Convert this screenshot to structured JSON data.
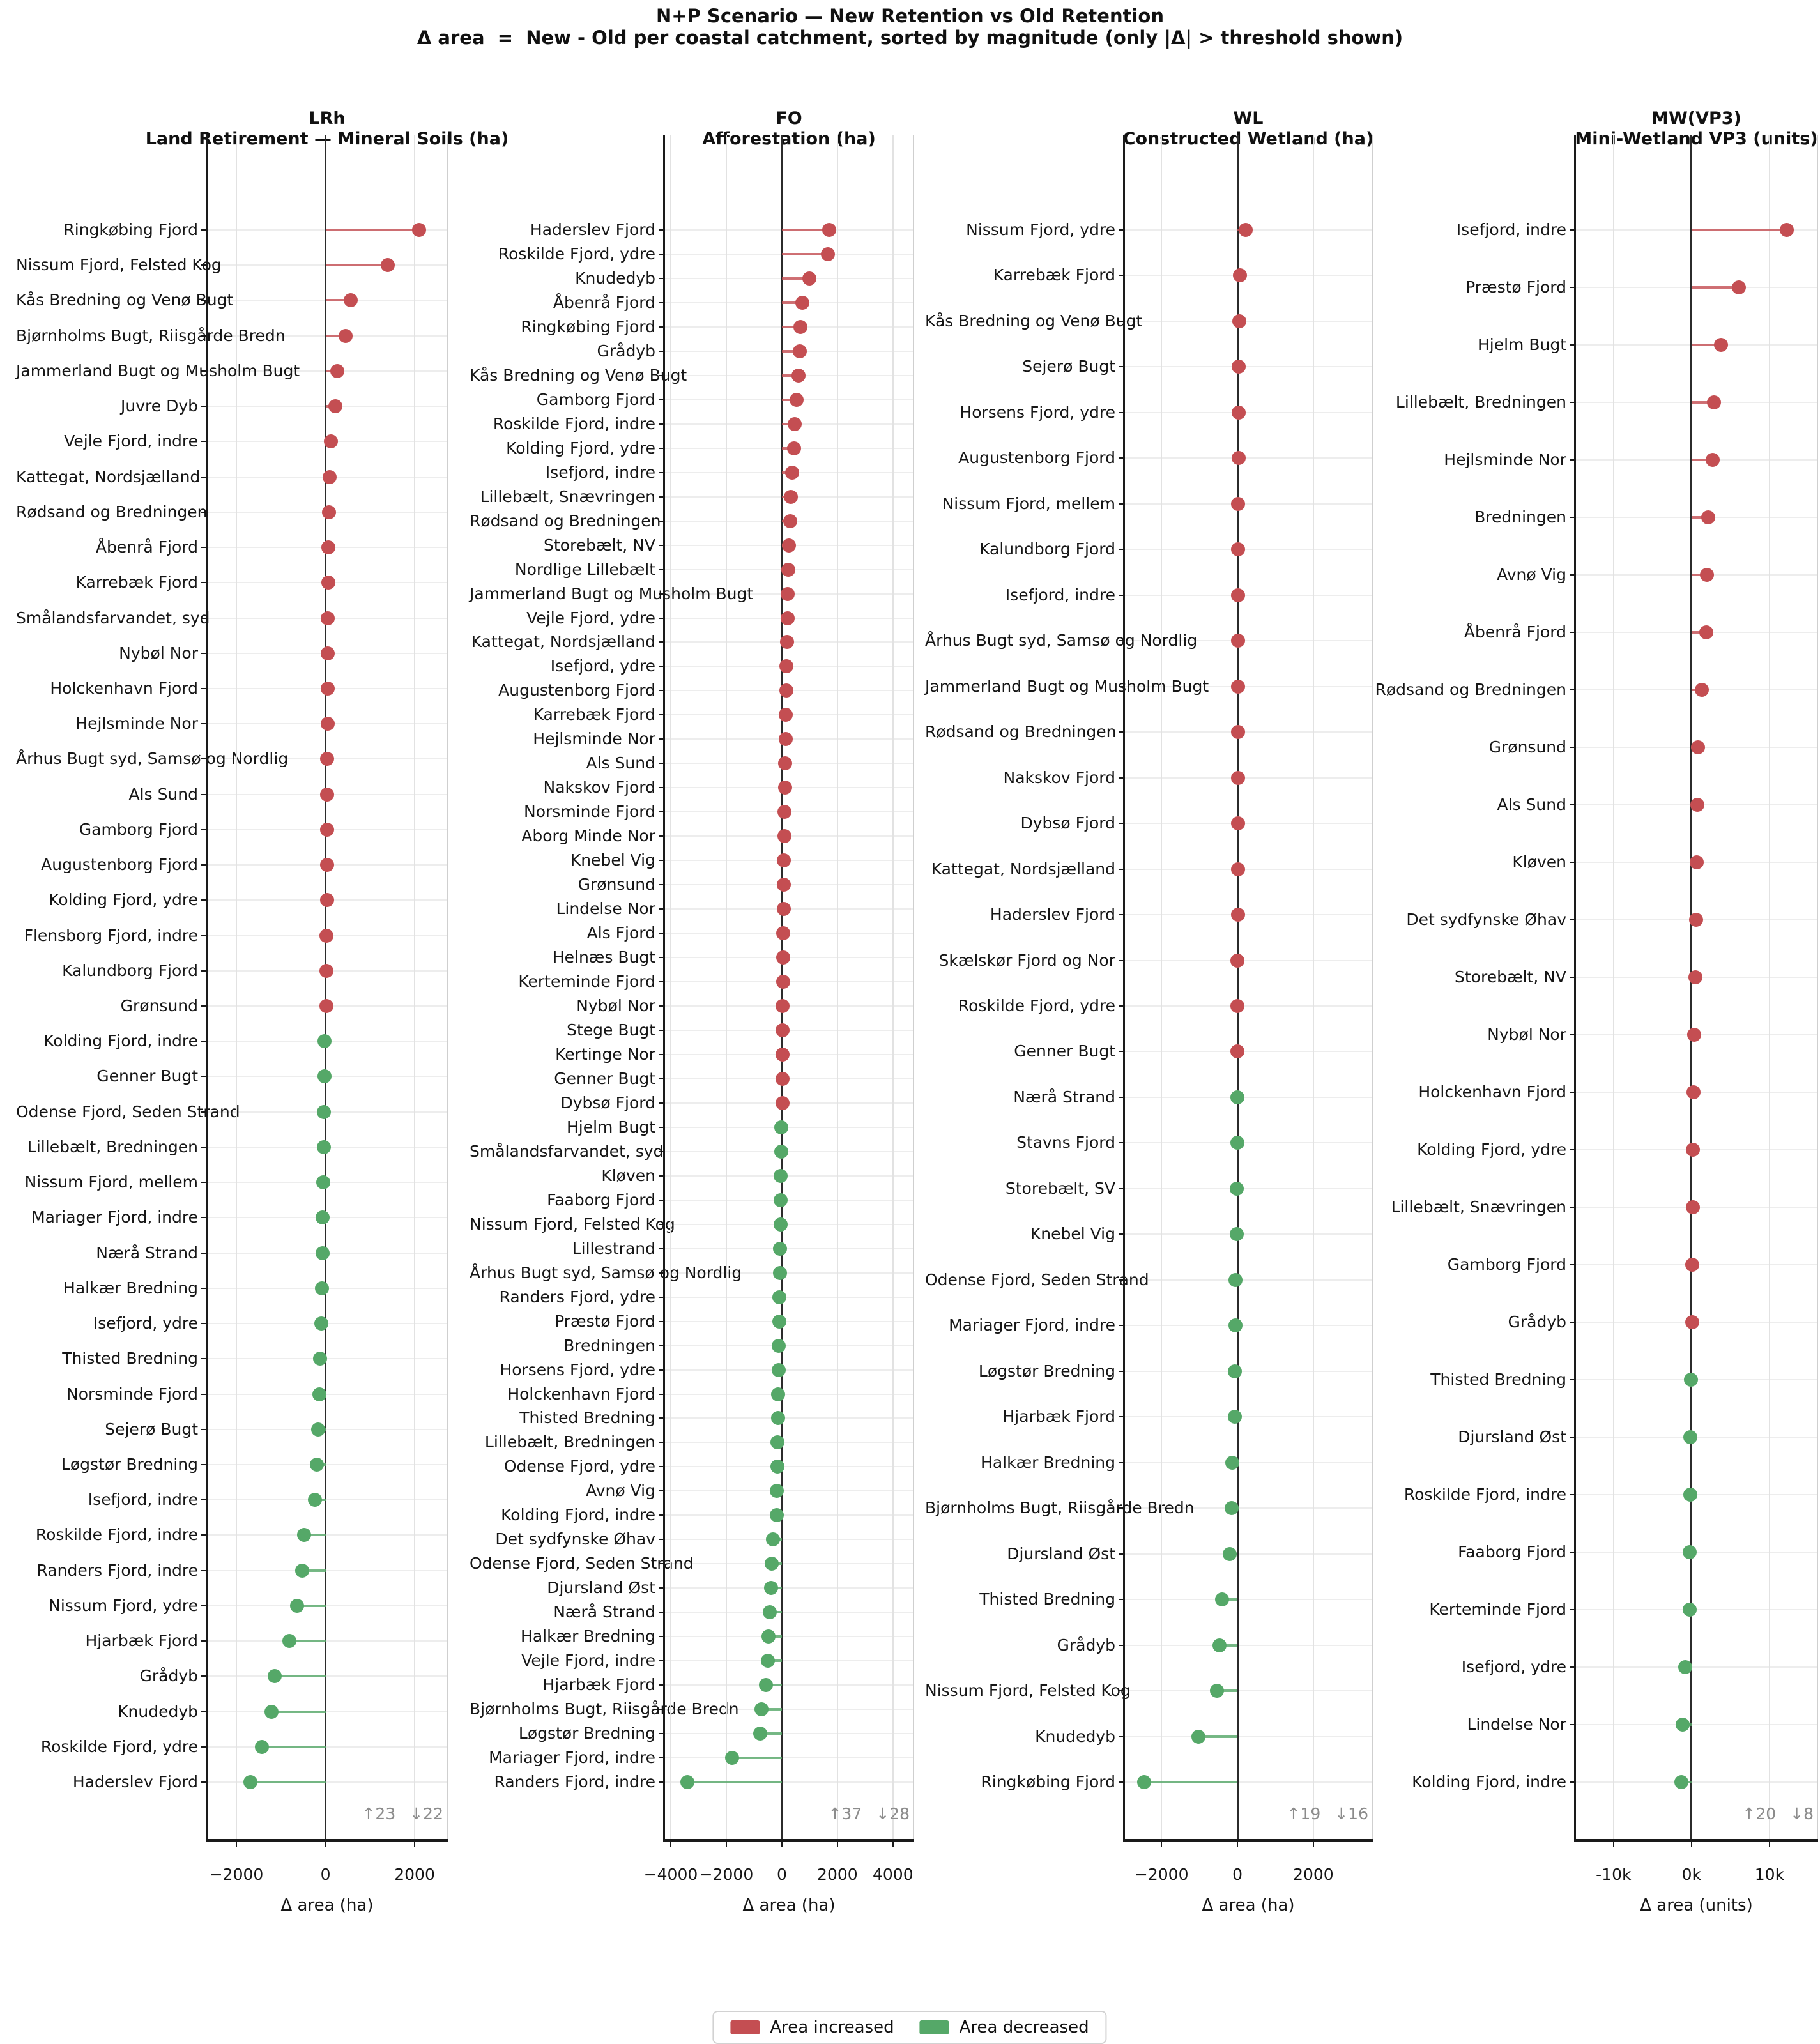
{
  "title": {
    "line1": "N+P Scenario — New Retention vs Old Retention",
    "line2": "Δ area  =  New - Old per coastal catchment, sorted by magnitude (only |Δ| > threshold shown)"
  },
  "legend": {
    "increase_label": "Area increased",
    "decrease_label": "Area decreased",
    "increase_color": "#c44e52",
    "decrease_color": "#55a868"
  },
  "chart_data": [
    {
      "type": "lollipop",
      "code": "LRh",
      "subtitle": "Land Retirement — Mineral Soils (ha)",
      "xlabel": "Δ area (ha)",
      "xlim": [
        -2660,
        2730
      ],
      "grid": true,
      "ticks": [
        {
          "value": -2000,
          "label": "−2000"
        },
        {
          "value": 0,
          "label": "0"
        },
        {
          "value": 2000,
          "label": "2000"
        }
      ],
      "increased_count": 23,
      "decreased_count": 22,
      "annotation": {
        "up": "↑23",
        "down": "↓22"
      },
      "rows": [
        {
          "label": "Ringkøbing Fjord",
          "value": 2100
        },
        {
          "label": "Nissum Fjord, Felsted Kog",
          "value": 1400
        },
        {
          "label": "Kås Bredning og Venø Bugt",
          "value": 570
        },
        {
          "label": "Bjørnholms Bugt, Riisgårde Bredn",
          "value": 450
        },
        {
          "label": "Jammerland Bugt og Musholm Bugt",
          "value": 260
        },
        {
          "label": "Juvre Dyb",
          "value": 215
        },
        {
          "label": "Vejle Fjord, indre",
          "value": 120
        },
        {
          "label": "Kattegat, Nordsjælland",
          "value": 95
        },
        {
          "label": "Rødsand og Bredningen",
          "value": 82
        },
        {
          "label": "Åbenrå Fjord",
          "value": 70
        },
        {
          "label": "Karrebæk Fjord",
          "value": 62
        },
        {
          "label": "Smålandsfarvandet, syd",
          "value": 56
        },
        {
          "label": "Nybøl Nor",
          "value": 51
        },
        {
          "label": "Holckenhavn Fjord",
          "value": 47
        },
        {
          "label": "Hejlsminde Nor",
          "value": 43
        },
        {
          "label": "Århus Bugt syd, Samsø og Nordlig",
          "value": 39
        },
        {
          "label": "Als Sund",
          "value": 36
        },
        {
          "label": "Gamborg Fjord",
          "value": 33
        },
        {
          "label": "Augustenborg Fjord",
          "value": 30
        },
        {
          "label": "Kolding Fjord, ydre",
          "value": 28
        },
        {
          "label": "Flensborg Fjord, indre",
          "value": 26
        },
        {
          "label": "Kalundborg Fjord",
          "value": 24
        },
        {
          "label": "Grønsund",
          "value": 22
        },
        {
          "label": "Kolding Fjord, indre",
          "value": -24
        },
        {
          "label": "Genner Bugt",
          "value": -29
        },
        {
          "label": "Odense Fjord, Seden Strand",
          "value": -35
        },
        {
          "label": "Lillebælt, Bredningen",
          "value": -42
        },
        {
          "label": "Nissum Fjord, mellem",
          "value": -50
        },
        {
          "label": "Mariager Fjord, indre",
          "value": -60
        },
        {
          "label": "Nærå Strand",
          "value": -72
        },
        {
          "label": "Halkær Bredning",
          "value": -86
        },
        {
          "label": "Isefjord, ydre",
          "value": -100
        },
        {
          "label": "Thisted Bredning",
          "value": -118
        },
        {
          "label": "Norsminde Fjord",
          "value": -138
        },
        {
          "label": "Sejerø Bugt",
          "value": -160
        },
        {
          "label": "Løgstør Bredning",
          "value": -190
        },
        {
          "label": "Isefjord, indre",
          "value": -240
        },
        {
          "label": "Roskilde Fjord, indre",
          "value": -480
        },
        {
          "label": "Randers Fjord, indre",
          "value": -530
        },
        {
          "label": "Nissum Fjord, ydre",
          "value": -640
        },
        {
          "label": "Hjarbæk Fjord",
          "value": -810
        },
        {
          "label": "Grådyb",
          "value": -1140
        },
        {
          "label": "Knudedyb",
          "value": -1210
        },
        {
          "label": "Roskilde Fjord, ydre",
          "value": -1430
        },
        {
          "label": "Haderslev Fjord",
          "value": -1680
        }
      ]
    },
    {
      "type": "lollipop",
      "code": "FO",
      "subtitle": "Afforestation (ha)",
      "xlabel": "Δ area (ha)",
      "xlim": [
        -4230,
        4740
      ],
      "grid": true,
      "ticks": [
        {
          "value": -4000,
          "label": "−4000"
        },
        {
          "value": -2000,
          "label": "−2000"
        },
        {
          "value": 0,
          "label": "0"
        },
        {
          "value": 2000,
          "label": "2000"
        },
        {
          "value": 4000,
          "label": "4000"
        }
      ],
      "increased_count": 37,
      "decreased_count": 28,
      "annotation": {
        "up": "↑37",
        "down": "↓28"
      },
      "rows": [
        {
          "label": "Haderslev Fjord",
          "value": 1700
        },
        {
          "label": "Roskilde Fjord, ydre",
          "value": 1660
        },
        {
          "label": "Knudedyb",
          "value": 1000
        },
        {
          "label": "Åbenrå Fjord",
          "value": 730
        },
        {
          "label": "Ringkøbing Fjord",
          "value": 660
        },
        {
          "label": "Grådyb",
          "value": 640
        },
        {
          "label": "Kås Bredning og Venø Bugt",
          "value": 610
        },
        {
          "label": "Gamborg Fjord",
          "value": 540
        },
        {
          "label": "Roskilde Fjord, indre",
          "value": 470
        },
        {
          "label": "Kolding Fjord, ydre",
          "value": 430
        },
        {
          "label": "Isefjord, indre",
          "value": 360
        },
        {
          "label": "Lillebælt, Snævringen",
          "value": 330
        },
        {
          "label": "Rødsand og Bredningen",
          "value": 290
        },
        {
          "label": "Storebælt, NV",
          "value": 260
        },
        {
          "label": "Nordlige Lillebælt",
          "value": 240
        },
        {
          "label": "Jammerland Bugt og Musholm Bugt",
          "value": 220
        },
        {
          "label": "Vejle Fjord, ydre",
          "value": 200
        },
        {
          "label": "Kattegat, Nordsjælland",
          "value": 185
        },
        {
          "label": "Isefjord, ydre",
          "value": 170
        },
        {
          "label": "Augustenborg Fjord",
          "value": 155
        },
        {
          "label": "Karrebæk Fjord",
          "value": 140
        },
        {
          "label": "Hejlsminde Nor",
          "value": 130
        },
        {
          "label": "Als Sund",
          "value": 120
        },
        {
          "label": "Nakskov Fjord",
          "value": 110
        },
        {
          "label": "Norsminde Fjord",
          "value": 100
        },
        {
          "label": "Aborg Minde Nor",
          "value": 90
        },
        {
          "label": "Knebel Vig",
          "value": 80
        },
        {
          "label": "Grønsund",
          "value": 72
        },
        {
          "label": "Lindelse Nor",
          "value": 64
        },
        {
          "label": "Als Fjord",
          "value": 56
        },
        {
          "label": "Helnæs Bugt",
          "value": 48
        },
        {
          "label": "Kerteminde Fjord",
          "value": 42
        },
        {
          "label": "Nybøl Nor",
          "value": 36
        },
        {
          "label": "Stege Bugt",
          "value": 30
        },
        {
          "label": "Kertinge Nor",
          "value": 25
        },
        {
          "label": "Genner Bugt",
          "value": 20
        },
        {
          "label": "Dybsø Fjord",
          "value": 15
        },
        {
          "label": "Hjelm Bugt",
          "value": -20
        },
        {
          "label": "Smålandsfarvandet, syd",
          "value": -28
        },
        {
          "label": "Kløven",
          "value": -36
        },
        {
          "label": "Faaborg Fjord",
          "value": -45
        },
        {
          "label": "Nissum Fjord, Felsted Kog",
          "value": -55
        },
        {
          "label": "Lillestrand",
          "value": -65
        },
        {
          "label": "Århus Bugt syd, Samsø og Nordlig",
          "value": -75
        },
        {
          "label": "Randers Fjord, ydre",
          "value": -85
        },
        {
          "label": "Præstø Fjord",
          "value": -95
        },
        {
          "label": "Bredningen",
          "value": -105
        },
        {
          "label": "Horsens Fjord, ydre",
          "value": -115
        },
        {
          "label": "Holckenhavn Fjord",
          "value": -125
        },
        {
          "label": "Thisted Bredning",
          "value": -140
        },
        {
          "label": "Lillebælt, Bredningen",
          "value": -155
        },
        {
          "label": "Odense Fjord, ydre",
          "value": -165
        },
        {
          "label": "Avnø Vig",
          "value": -175
        },
        {
          "label": "Kolding Fjord, indre",
          "value": -185
        },
        {
          "label": "Det sydfynske Øhav",
          "value": -320
        },
        {
          "label": "Odense Fjord, Seden Strand",
          "value": -370
        },
        {
          "label": "Djursland Øst",
          "value": -390
        },
        {
          "label": "Nærå Strand",
          "value": -430
        },
        {
          "label": "Halkær Bredning",
          "value": -470
        },
        {
          "label": "Vejle Fjord, indre",
          "value": -500
        },
        {
          "label": "Hjarbæk Fjord",
          "value": -580
        },
        {
          "label": "Bjørnholms Bugt, Riisgårde Bredn",
          "value": -730
        },
        {
          "label": "Løgstør Bredning",
          "value": -780
        },
        {
          "label": "Mariager Fjord, indre",
          "value": -1800
        },
        {
          "label": "Randers Fjord, indre",
          "value": -3400
        }
      ]
    },
    {
      "type": "lollipop",
      "code": "WL",
      "subtitle": "Constructed Wetland (ha)",
      "xlabel": "Δ area (ha)",
      "xlim": [
        -2980,
        3550
      ],
      "grid": true,
      "ticks": [
        {
          "value": -2000,
          "label": "−2000"
        },
        {
          "value": 0,
          "label": "0"
        },
        {
          "value": 2000,
          "label": "2000"
        }
      ],
      "increased_count": 19,
      "decreased_count": 16,
      "annotation": {
        "up": "↑19",
        "down": "↓16"
      },
      "rows": [
        {
          "label": "Nissum Fjord, ydre",
          "value": 220
        },
        {
          "label": "Karrebæk Fjord",
          "value": 65
        },
        {
          "label": "Kås Bredning og Venø Bugt",
          "value": 42
        },
        {
          "label": "Sejerø Bugt",
          "value": 36
        },
        {
          "label": "Horsens Fjord, ydre",
          "value": 31
        },
        {
          "label": "Augustenborg Fjord",
          "value": 27
        },
        {
          "label": "Nissum Fjord, mellem",
          "value": 24
        },
        {
          "label": "Kalundborg Fjord",
          "value": 21
        },
        {
          "label": "Isefjord, indre",
          "value": 19
        },
        {
          "label": "Århus Bugt syd, Samsø og Nordlig",
          "value": 17
        },
        {
          "label": "Jammerland Bugt og Musholm Bugt",
          "value": 15
        },
        {
          "label": "Rødsand og Bredningen",
          "value": 13
        },
        {
          "label": "Nakskov Fjord",
          "value": 12
        },
        {
          "label": "Dybsø Fjord",
          "value": 10
        },
        {
          "label": "Kattegat, Nordsjælland",
          "value": 9
        },
        {
          "label": "Haderslev Fjord",
          "value": 8
        },
        {
          "label": "Skælskør Fjord og Nor",
          "value": 7
        },
        {
          "label": "Roskilde Fjord, ydre",
          "value": 6
        },
        {
          "label": "Genner Bugt",
          "value": 5
        },
        {
          "label": "Nærå Strand",
          "value": -6
        },
        {
          "label": "Stavns Fjord",
          "value": -8
        },
        {
          "label": "Storebælt, SV",
          "value": -10
        },
        {
          "label": "Knebel Vig",
          "value": -12
        },
        {
          "label": "Odense Fjord, Seden Strand",
          "value": -45
        },
        {
          "label": "Mariager Fjord, indre",
          "value": -55
        },
        {
          "label": "Løgstør Bredning",
          "value": -65
        },
        {
          "label": "Hjarbæk Fjord",
          "value": -75
        },
        {
          "label": "Halkær Bredning",
          "value": -130
        },
        {
          "label": "Bjørnholms Bugt, Riisgårde Bredn",
          "value": -145
        },
        {
          "label": "Djursland Øst",
          "value": -210
        },
        {
          "label": "Thisted Bredning",
          "value": -410
        },
        {
          "label": "Grådyb",
          "value": -470
        },
        {
          "label": "Nissum Fjord, Felsted Kog",
          "value": -540
        },
        {
          "label": "Knudedyb",
          "value": -1030
        },
        {
          "label": "Ringkøbing Fjord",
          "value": -2460
        }
      ]
    },
    {
      "type": "lollipop",
      "code": "MW(VP3)",
      "subtitle": "Mini-Wetland VP3 (units)",
      "xlabel": "Δ area (units)",
      "xlim": [
        -14900,
        16150
      ],
      "grid": true,
      "ticks": [
        {
          "value": -10000,
          "label": "-10k"
        },
        {
          "value": 0,
          "label": "0k"
        },
        {
          "value": 10000,
          "label": "10k"
        }
      ],
      "increased_count": 20,
      "decreased_count": 8,
      "annotation": {
        "up": "↑20",
        "down": "↓8"
      },
      "rows": [
        {
          "label": "Isefjord, indre",
          "value": 12200
        },
        {
          "label": "Præstø Fjord",
          "value": 6100
        },
        {
          "label": "Hjelm Bugt",
          "value": 3800
        },
        {
          "label": "Lillebælt, Bredningen",
          "value": 2900
        },
        {
          "label": "Hejlsminde Nor",
          "value": 2700
        },
        {
          "label": "Bredningen",
          "value": 2100
        },
        {
          "label": "Avnø Vig",
          "value": 2000
        },
        {
          "label": "Åbenrå Fjord",
          "value": 1900
        },
        {
          "label": "Rødsand og Bredningen",
          "value": 1300
        },
        {
          "label": "Grønsund",
          "value": 850
        },
        {
          "label": "Als Sund",
          "value": 750
        },
        {
          "label": "Kløven",
          "value": 680
        },
        {
          "label": "Det sydfynske Øhav",
          "value": 560
        },
        {
          "label": "Storebælt, NV",
          "value": 480
        },
        {
          "label": "Nybøl Nor",
          "value": 300
        },
        {
          "label": "Holckenhavn Fjord",
          "value": 250
        },
        {
          "label": "Kolding Fjord, ydre",
          "value": 200
        },
        {
          "label": "Lillebælt, Snævringen",
          "value": 150
        },
        {
          "label": "Gamborg Fjord",
          "value": 110
        },
        {
          "label": "Grådyb",
          "value": 80
        },
        {
          "label": "Thisted Bredning",
          "value": -80
        },
        {
          "label": "Djursland Øst",
          "value": -120
        },
        {
          "label": "Roskilde Fjord, indre",
          "value": -160
        },
        {
          "label": "Faaborg Fjord",
          "value": -200
        },
        {
          "label": "Kerteminde Fjord",
          "value": -260
        },
        {
          "label": "Isefjord, ydre",
          "value": -800
        },
        {
          "label": "Lindelse Nor",
          "value": -1100
        },
        {
          "label": "Kolding Fjord, indre",
          "value": -1300
        }
      ]
    }
  ]
}
